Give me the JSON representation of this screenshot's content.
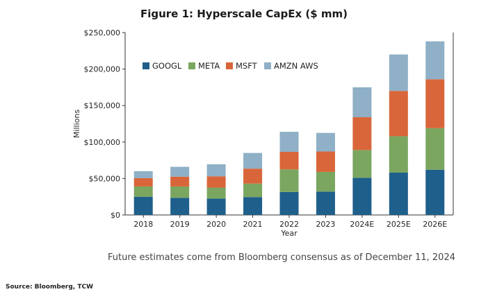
{
  "colors": {
    "GOOGL": "#1f5f8b",
    "META": "#7aa660",
    "MSFT": "#d9663a",
    "AMZN AWS": "#8fb0c6"
  },
  "chart_data": {
    "type": "bar",
    "stacked": true,
    "title": "Figure 1: Hyperscale CapEx ($ mm)",
    "xlabel": "Year",
    "ylabel": "Millions",
    "ylim": [
      0,
      250000
    ],
    "yticks": [
      "$0",
      "$50,000",
      "$100,000",
      "$150,000",
      "$200,000",
      "$250,000"
    ],
    "legend_position": "top-left",
    "categories": [
      "2018",
      "2019",
      "2020",
      "2021",
      "2022",
      "2023",
      "2024E",
      "2025E",
      "2026E"
    ],
    "series": [
      {
        "name": "GOOGL",
        "values": [
          25000,
          23500,
          22500,
          24500,
          31500,
          32000,
          51000,
          58000,
          62000
        ]
      },
      {
        "name": "META",
        "values": [
          14000,
          15500,
          15000,
          18500,
          31000,
          27000,
          38000,
          50000,
          57000
        ]
      },
      {
        "name": "MSFT",
        "values": [
          11500,
          13500,
          15500,
          20500,
          24000,
          28000,
          45000,
          62000,
          67000
        ]
      },
      {
        "name": "AMZN AWS",
        "values": [
          9500,
          13500,
          16500,
          21500,
          27500,
          25500,
          41000,
          50000,
          52000
        ]
      }
    ]
  },
  "footnote": "Future estimates come from Bloomberg consensus as of December 11, 2024",
  "source": "Source: Bloomberg, TCW"
}
